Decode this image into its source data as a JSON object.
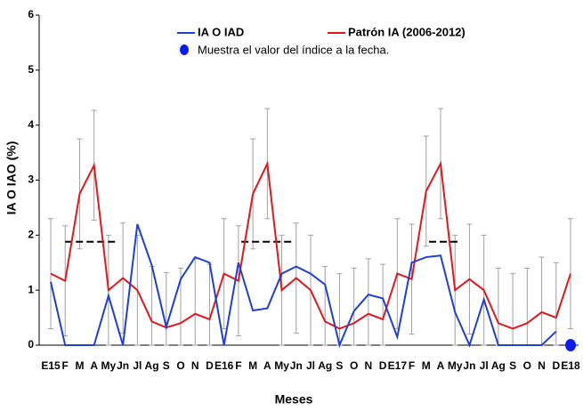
{
  "chart_data": {
    "type": "line",
    "ylabel": "IA O IAO (%)",
    "xlabel": "Meses",
    "ylim": [
      0,
      6
    ],
    "yticks": [
      0,
      1,
      2,
      3,
      4,
      5,
      6
    ],
    "categories": [
      "E15",
      "F",
      "M",
      "A",
      "My",
      "Jn",
      "Jl",
      "Ag",
      "S",
      "O",
      "N",
      "D",
      "E16",
      "F",
      "M",
      "A",
      "My",
      "Jn",
      "Jl",
      "Ag",
      "S",
      "O",
      "N",
      "D",
      "E17",
      "F",
      "M",
      "A",
      "My",
      "Jn",
      "Jl",
      "Ag",
      "S",
      "O",
      "N",
      "D",
      "E18"
    ],
    "series": [
      {
        "name": "IA O IAD",
        "color": "#1f3fd6",
        "values": [
          1.15,
          0,
          0,
          0,
          0.9,
          0,
          2.2,
          1.45,
          0.33,
          1.2,
          1.6,
          1.5,
          0,
          1.5,
          0.63,
          0.67,
          1.3,
          1.43,
          1.3,
          1.1,
          0,
          0.62,
          0.92,
          0.85,
          0.15,
          1.5,
          1.6,
          1.63,
          0.6,
          0,
          0.83,
          0,
          0,
          0,
          0,
          0.25,
          null
        ]
      },
      {
        "name": "Patrón IA (2006-2012)",
        "color": "#e3171b",
        "values": [
          1.3,
          1.17,
          2.75,
          3.27,
          1.0,
          1.22,
          1.0,
          0.43,
          0.32,
          0.4,
          0.57,
          0.47,
          1.3,
          1.17,
          2.75,
          3.3,
          1.0,
          1.22,
          1.0,
          0.43,
          0.3,
          0.4,
          0.57,
          0.47,
          1.3,
          1.2,
          2.8,
          3.3,
          1.0,
          1.2,
          1.0,
          0.4,
          0.3,
          0.4,
          0.6,
          0.5,
          1.3
        ],
        "errors": [
          1,
          1,
          1,
          1,
          1,
          1,
          1,
          1,
          1,
          1,
          1,
          1,
          1,
          1,
          1,
          1,
          1,
          1,
          1,
          1,
          1,
          1,
          1,
          1,
          1,
          1,
          1,
          1,
          1,
          1,
          1,
          1,
          1,
          1,
          1,
          1,
          1
        ],
        "error_color": "#a0a0a0"
      }
    ],
    "current_marker": {
      "label": "Muestra el valor del índice a la fecha.",
      "category_index": 36,
      "value": 0,
      "color": "#0a1cf0"
    },
    "dashed_lines": [
      {
        "value": 1.88,
        "x": [
          1,
          4.5
        ]
      },
      {
        "value": 1.88,
        "x": [
          13.2,
          16.9
        ]
      },
      {
        "value": 1.88,
        "x": [
          26.2,
          28.3
        ]
      }
    ]
  }
}
